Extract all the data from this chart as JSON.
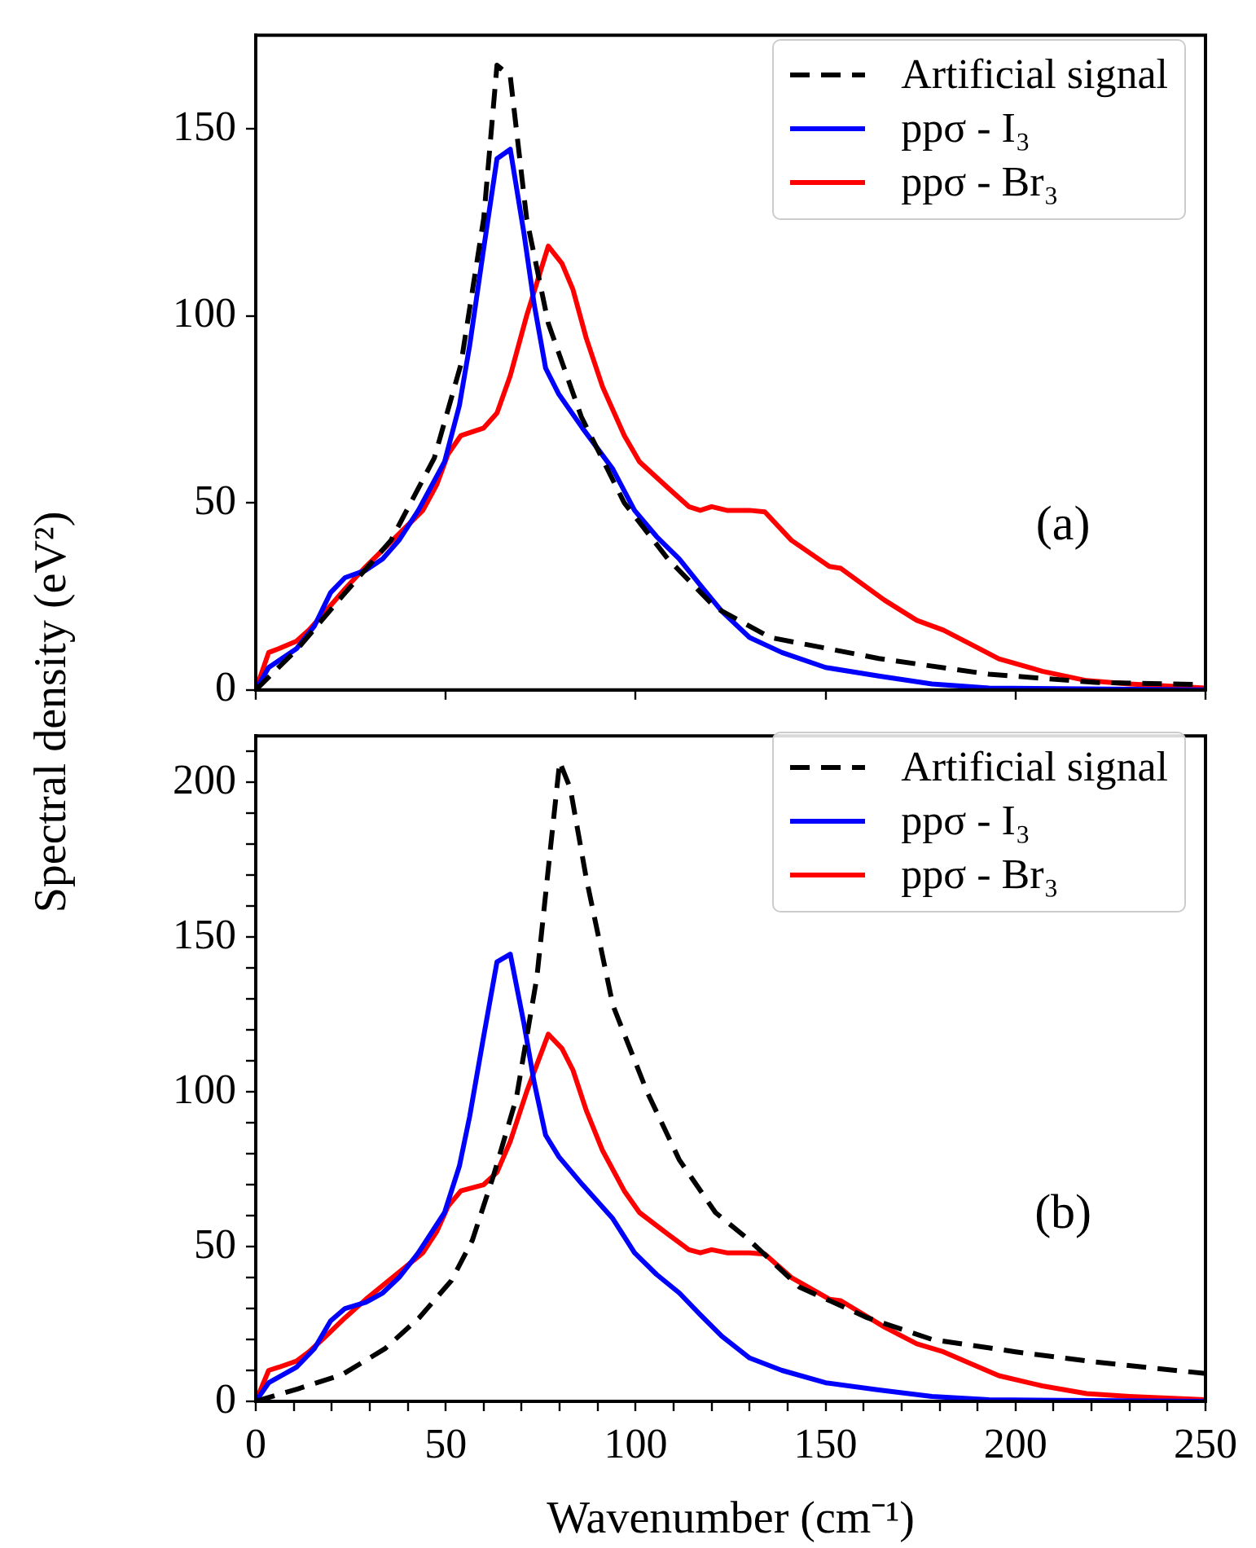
{
  "chart_data": [
    {
      "type": "line",
      "ylabel": "Spectral density (eV²)",
      "annotations": [
        "(a)"
      ],
      "xlim": [
        0,
        250
      ],
      "xticks": [
        0,
        50,
        100,
        150,
        200,
        250
      ],
      "ylim": [
        0,
        175
      ],
      "yticks": [
        0,
        50,
        100,
        150
      ],
      "tick_labels": "y",
      "legend": "top right",
      "grid": false,
      "marker": "none",
      "series": [
        {
          "name": "Artificial signal",
          "color": "#000000",
          "line_style": "dashed",
          "x": [
            0,
            11,
            22.7,
            35.6,
            47,
            54,
            60,
            63.5,
            67,
            71.3,
            77,
            85.7,
            97,
            108.5,
            121,
            135.5,
            164,
            193,
            221,
            250
          ],
          "values": [
            0,
            11,
            25,
            40,
            62,
            87,
            126,
            167,
            164,
            126,
            98,
            73,
            50,
            35,
            22,
            14,
            8.4,
            4.2,
            2,
            1.4
          ]
        },
        {
          "name": "ppσ - I₃",
          "color": "#0000ff",
          "line_style": "solid",
          "x": [
            0,
            3.4,
            10.7,
            15.4,
            19.7,
            23.5,
            29,
            33.4,
            37.7,
            42.8,
            49.7,
            53.6,
            56.3,
            60,
            63.5,
            67,
            70.6,
            73.3,
            76.3,
            79.8,
            86,
            94,
            99.7,
            105.5,
            111.5,
            117,
            122.7,
            130,
            138.5,
            150,
            164,
            178,
            193,
            250
          ],
          "values": [
            0,
            6,
            11,
            17,
            26,
            30,
            32,
            35,
            40,
            48,
            61,
            76,
            92,
            118,
            142,
            144.5,
            122,
            103,
            86,
            79,
            70,
            59,
            48,
            41,
            35,
            28,
            21,
            14,
            10,
            6,
            3.7,
            1.6,
            0.5,
            0
          ]
        },
        {
          "name": "ppσ - Br₃",
          "color": "#ff0000",
          "line_style": "solid",
          "x": [
            0,
            3.4,
            6,
            10.7,
            14,
            18.4,
            23.5,
            29,
            34,
            40,
            44,
            47.7,
            50.6,
            54,
            60,
            63.5,
            67,
            71.3,
            77,
            80.6,
            83.5,
            87,
            91.3,
            97,
            101,
            108.5,
            114,
            117,
            120,
            124,
            130,
            134,
            141,
            151,
            154,
            165.5,
            174,
            181,
            188.6,
            195.6,
            207,
            218.7,
            230,
            250
          ],
          "values": [
            0,
            10,
            11,
            13,
            16,
            21,
            27,
            33,
            38,
            44,
            48,
            55,
            63,
            68,
            70,
            74,
            84,
            100,
            118.6,
            114,
            107,
            94,
            81,
            68,
            61,
            54,
            49,
            48,
            49,
            48,
            48,
            47.6,
            40,
            33,
            32.5,
            24,
            18.6,
            16,
            12,
            8.3,
            5,
            2.5,
            1.6,
            0.5
          ]
        }
      ]
    },
    {
      "type": "line",
      "xlabel": "Wavenumber (cm⁻¹)",
      "annotations": [
        "(b)"
      ],
      "xlim": [
        0,
        250
      ],
      "xticks": [
        0,
        {
          "value": 10,
          "label": null
        },
        {
          "value": 20,
          "label": null
        },
        {
          "value": 30,
          "label": null
        },
        {
          "value": 40,
          "label": null
        },
        50,
        {
          "value": 60,
          "label": null
        },
        {
          "value": 70,
          "label": null
        },
        {
          "value": 80,
          "label": null
        },
        {
          "value": 90,
          "label": null
        },
        100,
        {
          "value": 110,
          "label": null
        },
        {
          "value": 120,
          "label": null
        },
        {
          "value": 130,
          "label": null
        },
        {
          "value": 140,
          "label": null
        },
        150,
        {
          "value": 160,
          "label": null
        },
        {
          "value": 170,
          "label": null
        },
        {
          "value": 180,
          "label": null
        },
        {
          "value": 190,
          "label": null
        },
        200,
        {
          "value": 210,
          "label": null
        },
        {
          "value": 220,
          "label": null
        },
        {
          "value": 230,
          "label": null
        },
        {
          "value": 240,
          "label": null
        },
        250
      ],
      "ylim": [
        0,
        215
      ],
      "yticks": [
        0,
        {
          "value": 10,
          "label": null
        },
        {
          "value": 20,
          "label": null
        },
        {
          "value": 30,
          "label": null
        },
        {
          "value": 40,
          "label": null
        },
        50,
        {
          "value": 60,
          "label": null
        },
        {
          "value": 70,
          "label": null
        },
        {
          "value": 80,
          "label": null
        },
        {
          "value": 90,
          "label": null
        },
        100,
        {
          "value": 110,
          "label": null
        },
        {
          "value": 120,
          "label": null
        },
        {
          "value": 130,
          "label": null
        },
        {
          "value": 140,
          "label": null
        },
        150,
        {
          "value": 160,
          "label": null
        },
        {
          "value": 170,
          "label": null
        },
        {
          "value": 180,
          "label": null
        },
        {
          "value": 190,
          "label": null
        },
        200,
        {
          "value": 210,
          "label": null
        }
      ],
      "legend": "top right",
      "grid": false,
      "marker": "none",
      "series": [
        {
          "name": "Artificial signal",
          "color": "#000000",
          "line_style": "dashed",
          "x": [
            0,
            11,
            22.7,
            34,
            43,
            51.5,
            57,
            62.6,
            68.6,
            74,
            77.6,
            80,
            82.8,
            87,
            94,
            103,
            111.5,
            121,
            130,
            143,
            161,
            178,
            200,
            221,
            250
          ],
          "values": [
            0,
            4,
            8.6,
            17,
            27,
            39,
            52,
            73,
            98,
            137,
            179,
            206.6,
            198,
            169,
            128,
            100,
            78,
            61,
            52,
            37,
            27,
            20,
            16,
            12.7,
            9
          ]
        },
        {
          "name": "ppσ - I₃",
          "color": "#0000ff",
          "line_style": "solid",
          "x": [
            0,
            3.4,
            10.7,
            15.4,
            19.7,
            23.5,
            29,
            33.4,
            37.7,
            42.8,
            49.7,
            53.6,
            56.3,
            60,
            63.5,
            67,
            70.6,
            73.3,
            76.3,
            79.8,
            86,
            94,
            99.7,
            105.5,
            111.5,
            117,
            122.7,
            130,
            138.5,
            150,
            164,
            178,
            193,
            250
          ],
          "values": [
            0,
            6,
            11,
            17,
            26,
            30,
            32,
            35,
            40,
            48,
            61,
            76,
            92,
            118,
            142,
            144.5,
            122,
            103,
            86,
            79,
            70,
            59,
            48,
            41,
            35,
            28,
            21,
            14,
            10,
            6,
            3.7,
            1.6,
            0.5,
            0
          ]
        },
        {
          "name": "ppσ - Br₃",
          "color": "#ff0000",
          "line_style": "solid",
          "x": [
            0,
            3.4,
            6,
            10.7,
            14,
            18.4,
            23.5,
            29,
            34,
            40,
            44,
            47.7,
            50.6,
            54,
            60,
            63.5,
            67,
            71.3,
            77,
            80.6,
            83.5,
            87,
            91.3,
            97,
            101,
            108.5,
            114,
            117,
            120,
            124,
            130,
            134,
            141,
            151,
            154,
            165.5,
            174,
            181,
            188.6,
            195.6,
            207,
            218.7,
            230,
            250
          ],
          "values": [
            0,
            10,
            11,
            13,
            16,
            21,
            27,
            33,
            38,
            44,
            48,
            55,
            63,
            68,
            70,
            74,
            84,
            100,
            118.6,
            114,
            107,
            94,
            81,
            68,
            61,
            54,
            49,
            48,
            49,
            48,
            48,
            47.6,
            40,
            33,
            32.5,
            24,
            18.6,
            16,
            12,
            8.3,
            5,
            2.5,
            1.6,
            0.5
          ]
        }
      ]
    }
  ]
}
